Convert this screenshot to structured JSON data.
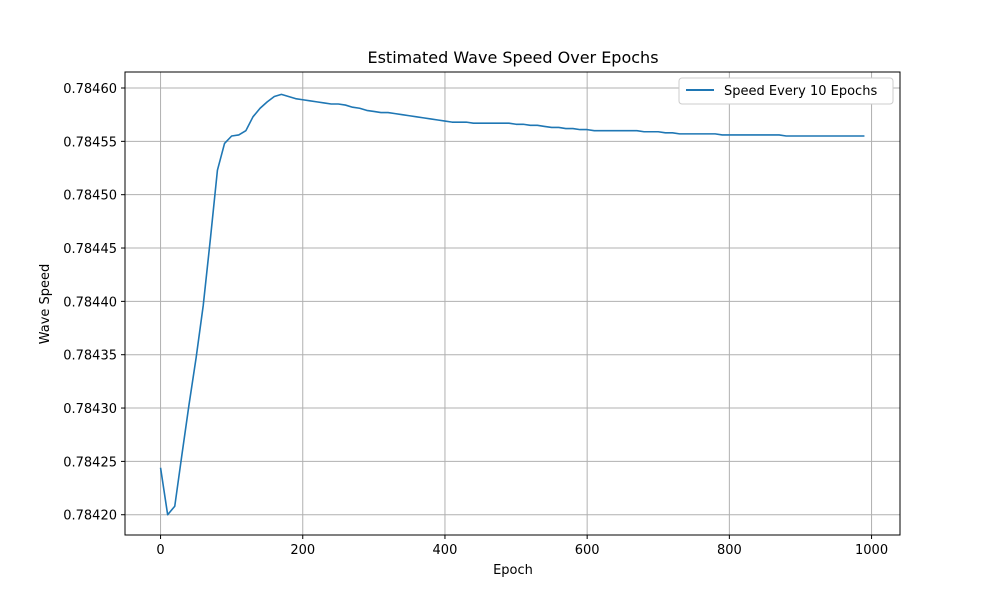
{
  "chart_data": {
    "type": "line",
    "title": "Estimated Wave Speed Over Epochs",
    "xlabel": "Epoch",
    "ylabel": "Wave Speed",
    "xlim": [
      -50,
      1040
    ],
    "ylim": [
      0.784181,
      0.784615
    ],
    "xticks": [
      0,
      200,
      400,
      600,
      800,
      1000
    ],
    "xtick_labels": [
      "0",
      "200",
      "400",
      "600",
      "800",
      "1000"
    ],
    "yticks": [
      0.7842,
      0.78425,
      0.7843,
      0.78435,
      0.7844,
      0.78445,
      0.7845,
      0.78455,
      0.7846
    ],
    "ytick_labels": [
      "0.78420",
      "0.78425",
      "0.78430",
      "0.78435",
      "0.78440",
      "0.78445",
      "0.78450",
      "0.78455",
      "0.78460"
    ],
    "grid": true,
    "legend_position": "top-right",
    "color": "#1f77b4",
    "series": [
      {
        "name": "Speed Every 10 Epochs",
        "x": [
          0,
          10,
          20,
          30,
          40,
          50,
          60,
          70,
          80,
          90,
          100,
          110,
          120,
          130,
          140,
          150,
          160,
          170,
          180,
          190,
          200,
          210,
          220,
          230,
          240,
          250,
          260,
          270,
          280,
          290,
          300,
          310,
          320,
          330,
          340,
          350,
          360,
          370,
          380,
          390,
          400,
          410,
          420,
          430,
          440,
          450,
          460,
          470,
          480,
          490,
          500,
          510,
          520,
          530,
          540,
          550,
          560,
          570,
          580,
          590,
          600,
          610,
          620,
          630,
          640,
          650,
          660,
          670,
          680,
          690,
          700,
          710,
          720,
          730,
          740,
          750,
          760,
          770,
          780,
          790,
          800,
          810,
          820,
          830,
          840,
          850,
          860,
          870,
          880,
          890,
          900,
          910,
          920,
          930,
          940,
          950,
          960,
          970,
          980,
          990
        ],
        "y": [
          0.784244,
          0.7842,
          0.784208,
          0.784256,
          0.784303,
          0.784347,
          0.784396,
          0.784458,
          0.784523,
          0.784548,
          0.784555,
          0.784556,
          0.78456,
          0.784573,
          0.784581,
          0.784587,
          0.784592,
          0.784594,
          0.784592,
          0.78459,
          0.784589,
          0.784588,
          0.784587,
          0.784586,
          0.784585,
          0.784585,
          0.784584,
          0.784582,
          0.784581,
          0.784579,
          0.784578,
          0.784577,
          0.784577,
          0.784576,
          0.784575,
          0.784574,
          0.784573,
          0.784572,
          0.784571,
          0.78457,
          0.784569,
          0.784568,
          0.784568,
          0.784568,
          0.784567,
          0.784567,
          0.784567,
          0.784567,
          0.784567,
          0.784567,
          0.784566,
          0.784566,
          0.784565,
          0.784565,
          0.784564,
          0.784563,
          0.784563,
          0.784562,
          0.784562,
          0.784561,
          0.784561,
          0.78456,
          0.78456,
          0.78456,
          0.78456,
          0.78456,
          0.78456,
          0.78456,
          0.784559,
          0.784559,
          0.784559,
          0.784558,
          0.784558,
          0.784557,
          0.784557,
          0.784557,
          0.784557,
          0.784557,
          0.784557,
          0.784556,
          0.784556,
          0.784556,
          0.784556,
          0.784556,
          0.784556,
          0.784556,
          0.784556,
          0.784556,
          0.784555,
          0.784555,
          0.784555,
          0.784555,
          0.784555,
          0.784555,
          0.784555,
          0.784555,
          0.784555,
          0.784555,
          0.784555,
          0.784555
        ]
      }
    ]
  }
}
